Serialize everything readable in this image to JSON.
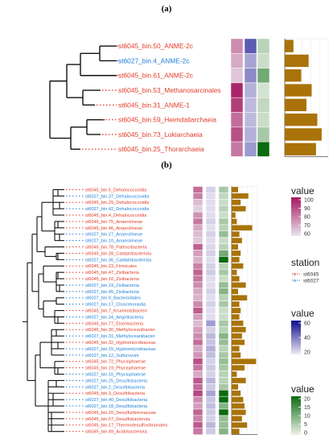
{
  "panels": [
    {
      "label": "(a)",
      "leaves": [
        {
          "name": "st6045_bin.50_ANME-2c",
          "station": "st6045"
        },
        {
          "name": "st6027_bin.4_ANME-2c",
          "station": "st6027"
        },
        {
          "name": "st6045_bin.61_ANME-2c",
          "station": "st6045"
        },
        {
          "name": "st6045_bin.53_Methanosarcinales",
          "station": "st6045"
        },
        {
          "name": "st6045_bin.31_ANME-1",
          "station": "st6045"
        },
        {
          "name": "st6045_bin.59_Heimdallarchaeia",
          "station": "st6045"
        },
        {
          "name": "st6045_bin.73_Lokiarchaeia",
          "station": "st6045"
        },
        {
          "name": "st6045_bin.25_Thorarchaeia",
          "station": "st6045"
        }
      ],
      "heat1": [
        76,
        70,
        64,
        97,
        92,
        82,
        88,
        80
      ],
      "heat2": [
        45,
        22,
        30,
        18,
        15,
        15,
        18,
        25
      ],
      "heat3": [
        6,
        4,
        14,
        3,
        5,
        4,
        8,
        26
      ],
      "bars": [
        0.2,
        0.55,
        0.38,
        0.62,
        0.5,
        0.75,
        0.85,
        0.72
      ]
    },
    {
      "label": "(b)",
      "leaves": [
        {
          "name": "st6045_bin.5_Dehalococcoidia",
          "station": "st6045"
        },
        {
          "name": "st6027_bin.37_Dehalococcoidia",
          "station": "st6027"
        },
        {
          "name": "st6045_bin.29_Dehalococcoidia",
          "station": "st6045"
        },
        {
          "name": "st6027_bin.42_Dehalococcoidia",
          "station": "st6027"
        },
        {
          "name": "st6045_bin.4_Dehalococcoidia",
          "station": "st6045"
        },
        {
          "name": "st6045_bin.75_Anaerolineae",
          "station": "st6045"
        },
        {
          "name": "st6045_bin.46_Anaerolineae",
          "station": "st6045"
        },
        {
          "name": "st6027_bin.27_Anaerolineae",
          "station": "st6027"
        },
        {
          "name": "st6027_bin.10_Anaerolineae",
          "station": "st6027"
        },
        {
          "name": "st6045_bin.78_Patescibacteria",
          "station": "st6045"
        },
        {
          "name": "st6045_bin.28_Caldatribacteriota",
          "station": "st6045"
        },
        {
          "name": "st6027_bin.36_Caldatribacteriota",
          "station": "st6027"
        },
        {
          "name": "st6045_bin.23_Firmicutes",
          "station": "st6045"
        },
        {
          "name": "st6045_bin.47_Zixibacteria",
          "station": "st6045"
        },
        {
          "name": "st6045_bin.10_Zixibacteria",
          "station": "st6045"
        },
        {
          "name": "st6027_bin.19_Zixibacteria",
          "station": "st6027"
        },
        {
          "name": "st6027_bin.45_Zixibacteria",
          "station": "st6027"
        },
        {
          "name": "st6027_bin.9_Bacteroidales",
          "station": "st6027"
        },
        {
          "name": "st6027_bin.17_Cloacimonadia",
          "station": "st6027"
        },
        {
          "name": "st6045_bin.7_Krumholzibacteri",
          "station": "st6045"
        },
        {
          "name": "st6027_bin.34_Aegiribacteria",
          "station": "st6027"
        },
        {
          "name": "st6045_bin.77_Eisenbacteria",
          "station": "st6045"
        },
        {
          "name": "st6045_bin.30_Methyloceanibacter",
          "station": "st6045"
        },
        {
          "name": "st6027_bin.31_Methyloceanibacter",
          "station": "st6027"
        },
        {
          "name": "st6045_bin.32_Hyphomicrobiaceae",
          "station": "st6045"
        },
        {
          "name": "st6027_bin.15_Hyphomicrobiaceae",
          "station": "st6027"
        },
        {
          "name": "st6027_bin.12_Sulfurovum",
          "station": "st6027"
        },
        {
          "name": "st6045_bin.72_Phycisphaerae",
          "station": "st6045"
        },
        {
          "name": "st6045_bin.19_Phycisphaerae",
          "station": "st6045"
        },
        {
          "name": "st6027_bin.16_Phycisphaerae",
          "station": "st6027"
        },
        {
          "name": "st6027_bin.25_Desulfobacteria",
          "station": "st6027"
        },
        {
          "name": "st6027_bin.2_Desulfobacteria",
          "station": "st6027"
        },
        {
          "name": "st6045_bin.3_Desulfobacteria",
          "station": "st6045"
        },
        {
          "name": "st6027_bin.40_Desulfobacteria",
          "station": "st6027"
        },
        {
          "name": "st6027_bin.18_Desulfobacteria",
          "station": "st6027"
        },
        {
          "name": "st6045_bin.20_Desulfuribrionaceae",
          "station": "st6045"
        },
        {
          "name": "st6045_bin.57_Desulfobacterota",
          "station": "st6045"
        },
        {
          "name": "st6045_bin.17_Thermodesulfovibrionales",
          "station": "st6045"
        },
        {
          "name": "st6045_bin.49_Acidobacteriota",
          "station": "st6045"
        }
      ],
      "heat1": [
        82,
        78,
        66,
        62,
        74,
        80,
        70,
        66,
        64,
        85,
        72,
        68,
        78,
        84,
        80,
        76,
        70,
        68,
        76,
        86,
        72,
        66,
        72,
        76,
        82,
        70,
        74,
        88,
        80,
        70,
        86,
        82,
        90,
        76,
        72,
        84,
        78,
        86,
        80
      ],
      "heat2": [
        8,
        4,
        4,
        4,
        4,
        8,
        4,
        8,
        4,
        6,
        8,
        4,
        8,
        10,
        4,
        4,
        8,
        4,
        8,
        4,
        4,
        24,
        8,
        16,
        12,
        18,
        14,
        8,
        10,
        8,
        16,
        10,
        22,
        12,
        14,
        10,
        8,
        16,
        10
      ],
      "heat3": [
        8,
        5,
        4,
        6,
        4,
        8,
        6,
        10,
        4,
        6,
        14,
        40,
        6,
        8,
        4,
        10,
        12,
        6,
        8,
        4,
        4,
        8,
        6,
        12,
        10,
        6,
        8,
        10,
        8,
        6,
        6,
        8,
        70,
        30,
        12,
        40,
        10,
        10,
        12
      ],
      "bars": [
        0.25,
        0.65,
        0.35,
        0.55,
        0.15,
        0.2,
        0.8,
        0.3,
        0.4,
        0.25,
        0.35,
        0.3,
        0.45,
        0.2,
        0.3,
        0.55,
        0.25,
        0.6,
        0.3,
        0.35,
        0.3,
        0.45,
        0.55,
        0.4,
        0.5,
        0.3,
        0.35,
        0.95,
        0.5,
        0.2,
        0.55,
        0.25,
        0.35,
        0.45,
        0.5,
        0.55,
        0.4,
        0.6,
        0.3
      ]
    }
  ],
  "legends": {
    "value1": {
      "title": "value",
      "ticks": [
        "100",
        "90",
        "80",
        "70",
        "60"
      ],
      "colors": [
        "#a5175f",
        "#e9e3ec"
      ]
    },
    "station": {
      "title": "station",
      "items": [
        {
          "label": "st6045",
          "color": "#e03c28"
        },
        {
          "label": "st6027",
          "color": "#1f7fd6"
        }
      ]
    },
    "value2": {
      "title": "value",
      "ticks": [
        "60",
        "40",
        "20"
      ],
      "colors": [
        "#0b0b8c",
        "#eeeaf4"
      ]
    },
    "value3": {
      "title": "value",
      "ticks": [
        "20",
        "15",
        "10",
        "5",
        "0"
      ],
      "colors": [
        "#0a6b10",
        "#eef2ea"
      ]
    }
  },
  "colors": {
    "st6045": "#e03c28",
    "st6027": "#1f7fd6",
    "bar": "#a97309"
  }
}
